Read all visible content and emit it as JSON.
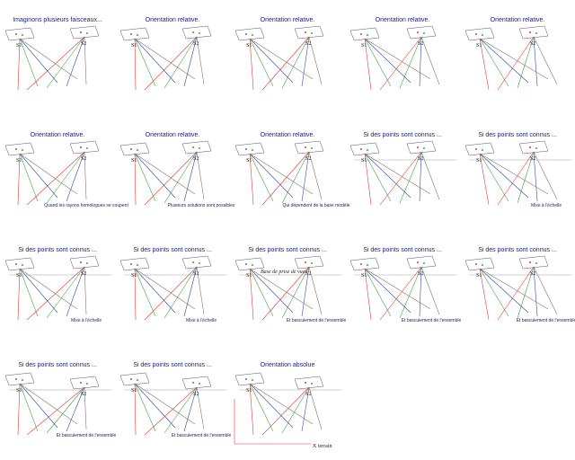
{
  "slides": [
    {
      "title": "Imaginons plusieurs faisceaux...",
      "labels": [
        "S1",
        "S2"
      ]
    },
    {
      "title": "Orientation relative.",
      "labels": [
        "S1",
        "S2"
      ]
    },
    {
      "title": "Orientation relative.",
      "labels": [
        "S1",
        "S2"
      ]
    },
    {
      "title": "Orientation relative.",
      "labels": [
        "S1",
        "S2"
      ]
    },
    {
      "title": "Orientation relative.",
      "labels": [
        "S1",
        "S2"
      ]
    },
    {
      "title": "Orientation relative.",
      "caption": "Quand les rayons homologues se coupent",
      "labels": [
        "S1",
        "S2"
      ]
    },
    {
      "title": "Orientation relative.",
      "caption": "Plusieurs solutions sont  possibles",
      "labels": [
        "S1",
        "S2"
      ]
    },
    {
      "title": "Orientation relative.",
      "caption": "Qui dépendent de la base modèle",
      "labels": [
        "S1",
        "S2"
      ]
    },
    {
      "title": "Si des points sont connus ...",
      "labels": [
        "S1",
        "S2"
      ]
    },
    {
      "title": "Si des points sont connus ...",
      "caption": "Mise à l'échelle",
      "labels": [
        "S1",
        "S2"
      ]
    },
    {
      "title": "Si des points sont connus ...",
      "caption": "Mise à l'échelle",
      "labels": [
        "S1",
        "S2"
      ]
    },
    {
      "title": "Si des points sont connus ...",
      "caption": "Mise à l'échelle",
      "labels": [
        "S1",
        "S2"
      ]
    },
    {
      "title": "Si des points sont connus ...",
      "caption": "Et basculement de l'ensemble",
      "labels": [
        "S1",
        "S2",
        "Base de prise de vues"
      ]
    },
    {
      "title": "Si des points sont connus ...",
      "caption": "Et basculement de l'ensemble",
      "labels": [
        "S1",
        "S2"
      ]
    },
    {
      "title": "Si des points sont connus ...",
      "caption": "Et basculement de l'ensemble",
      "labels": [
        "S1",
        "S2"
      ]
    },
    {
      "title": "Si des points sont connus ...",
      "caption": "Et basculement de l'ensemble",
      "labels": [
        "S1",
        "S2"
      ]
    },
    {
      "title": "Si des points sont connus ...",
      "caption": "Et basculement de l'ensemble",
      "labels": [
        "S1",
        "S2"
      ]
    },
    {
      "title": "Orientation absolue",
      "labels": [
        "S1",
        "S2",
        "X terrain"
      ]
    }
  ]
}
